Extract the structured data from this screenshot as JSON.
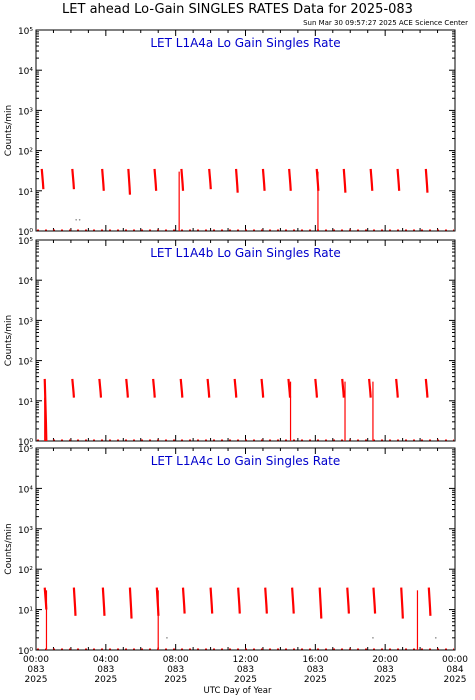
{
  "title": "LET ahead Lo-Gain SINGLES RATES Data for 2025-083",
  "timestamp": "Sun Mar 30 09:57:27 2025 ACE Science Center",
  "xlabel": "UTC Day of Year",
  "colors": {
    "data": "#ff0000",
    "panel_title": "#0000cc",
    "axes": "#000000"
  },
  "x_ticks": [
    {
      "time": "00:00",
      "doy": "083",
      "year": "2025",
      "hour": 0
    },
    {
      "time": "04:00",
      "doy": "083",
      "year": "2025",
      "hour": 4
    },
    {
      "time": "08:00",
      "doy": "083",
      "year": "2025",
      "hour": 8
    },
    {
      "time": "12:00",
      "doy": "083",
      "year": "2025",
      "hour": 12
    },
    {
      "time": "16:00",
      "doy": "083",
      "year": "2025",
      "hour": 16
    },
    {
      "time": "20:00",
      "doy": "083",
      "year": "2025",
      "hour": 20
    },
    {
      "time": "00:00",
      "doy": "084",
      "year": "2025",
      "hour": 24
    }
  ],
  "chart_data": [
    {
      "type": "line",
      "title": "LET L1A4a Lo Gain Singles Rate",
      "ylabel": "Counts/min",
      "yscale": "log",
      "ylim": [
        1,
        100000
      ],
      "y_ticks": [
        "10⁰",
        "10¹",
        "10²",
        "10³",
        "10⁴",
        "10⁵"
      ],
      "xlim": [
        0,
        24
      ],
      "bursts": [
        {
          "x": 0.33,
          "top": 35,
          "bottom": 11
        },
        {
          "x": 2.08,
          "top": 35,
          "bottom": 11
        },
        {
          "x": 3.79,
          "top": 35,
          "bottom": 10
        },
        {
          "x": 5.29,
          "top": 35,
          "bottom": 8
        },
        {
          "x": 6.79,
          "top": 35,
          "bottom": 10
        },
        {
          "x": 8.33,
          "top": 35,
          "bottom": 10
        },
        {
          "x": 9.92,
          "top": 35,
          "bottom": 11
        },
        {
          "x": 11.46,
          "top": 35,
          "bottom": 9
        },
        {
          "x": 13.0,
          "top": 35,
          "bottom": 10
        },
        {
          "x": 14.5,
          "top": 35,
          "bottom": 10
        },
        {
          "x": 16.08,
          "top": 35,
          "bottom": 10
        },
        {
          "x": 17.63,
          "top": 35,
          "bottom": 9
        },
        {
          "x": 19.17,
          "top": 35,
          "bottom": 10
        },
        {
          "x": 20.71,
          "top": 35,
          "bottom": 10
        },
        {
          "x": 22.33,
          "top": 35,
          "bottom": 9
        }
      ],
      "drops": [
        {
          "x": 8.2,
          "top": 30
        },
        {
          "x": 16.15,
          "top": 30
        }
      ],
      "baseline": 1,
      "scatter": [
        {
          "x": 2.3,
          "y": 1.9
        },
        {
          "x": 2.5,
          "y": 1.9
        }
      ]
    },
    {
      "type": "line",
      "title": "LET L1A4b Lo Gain Singles Rate",
      "ylabel": "Counts/min",
      "yscale": "log",
      "ylim": [
        1,
        100000
      ],
      "y_ticks": [
        "10⁰",
        "10¹",
        "10²",
        "10³",
        "10⁴",
        "10⁵"
      ],
      "xlim": [
        0,
        24
      ],
      "bursts": [
        {
          "x": 0.5,
          "top": 35,
          "bottom": 1
        },
        {
          "x": 2.08,
          "top": 35,
          "bottom": 12
        },
        {
          "x": 3.63,
          "top": 35,
          "bottom": 12
        },
        {
          "x": 5.17,
          "top": 35,
          "bottom": 12
        },
        {
          "x": 6.71,
          "top": 35,
          "bottom": 12
        },
        {
          "x": 8.29,
          "top": 35,
          "bottom": 12
        },
        {
          "x": 9.83,
          "top": 35,
          "bottom": 12
        },
        {
          "x": 11.38,
          "top": 35,
          "bottom": 12
        },
        {
          "x": 12.92,
          "top": 35,
          "bottom": 12
        },
        {
          "x": 14.46,
          "top": 35,
          "bottom": 12
        },
        {
          "x": 16.0,
          "top": 35,
          "bottom": 12
        },
        {
          "x": 17.54,
          "top": 35,
          "bottom": 12
        },
        {
          "x": 19.08,
          "top": 35,
          "bottom": 12
        },
        {
          "x": 20.63,
          "top": 35,
          "bottom": 12
        },
        {
          "x": 22.33,
          "top": 35,
          "bottom": 12
        }
      ],
      "drops": [
        {
          "x": 0.5,
          "top": 12
        },
        {
          "x": 14.58,
          "top": 30
        },
        {
          "x": 17.7,
          "top": 30
        },
        {
          "x": 19.3,
          "top": 30
        }
      ],
      "baseline": 1,
      "scatter": []
    },
    {
      "type": "line",
      "title": "LET L1A4c Lo Gain Singles Rate",
      "ylabel": "Counts/min",
      "yscale": "log",
      "ylim": [
        1,
        100000
      ],
      "y_ticks": [
        "10⁰",
        "10¹",
        "10²",
        "10³",
        "10⁴",
        "10⁵"
      ],
      "xlim": [
        0,
        24
      ],
      "bursts": [
        {
          "x": 0.5,
          "top": 35,
          "bottom": 10
        },
        {
          "x": 2.17,
          "top": 35,
          "bottom": 7
        },
        {
          "x": 3.83,
          "top": 35,
          "bottom": 7
        },
        {
          "x": 5.38,
          "top": 35,
          "bottom": 6
        },
        {
          "x": 6.92,
          "top": 35,
          "bottom": 7
        },
        {
          "x": 8.42,
          "top": 35,
          "bottom": 8
        },
        {
          "x": 10.0,
          "top": 35,
          "bottom": 8
        },
        {
          "x": 11.58,
          "top": 35,
          "bottom": 8
        },
        {
          "x": 13.13,
          "top": 35,
          "bottom": 8
        },
        {
          "x": 14.67,
          "top": 35,
          "bottom": 8
        },
        {
          "x": 16.25,
          "top": 35,
          "bottom": 6
        },
        {
          "x": 17.83,
          "top": 35,
          "bottom": 8
        },
        {
          "x": 19.33,
          "top": 35,
          "bottom": 8
        },
        {
          "x": 20.92,
          "top": 35,
          "bottom": 6
        },
        {
          "x": 22.5,
          "top": 35,
          "bottom": 7
        }
      ],
      "drops": [
        {
          "x": 0.6,
          "top": 30
        },
        {
          "x": 7.0,
          "top": 30
        },
        {
          "x": 21.85,
          "top": 30
        }
      ],
      "baseline": 1,
      "scatter": [
        {
          "x": 7.5,
          "y": 2
        },
        {
          "x": 19.3,
          "y": 2
        },
        {
          "x": 22.9,
          "y": 2
        }
      ]
    }
  ]
}
